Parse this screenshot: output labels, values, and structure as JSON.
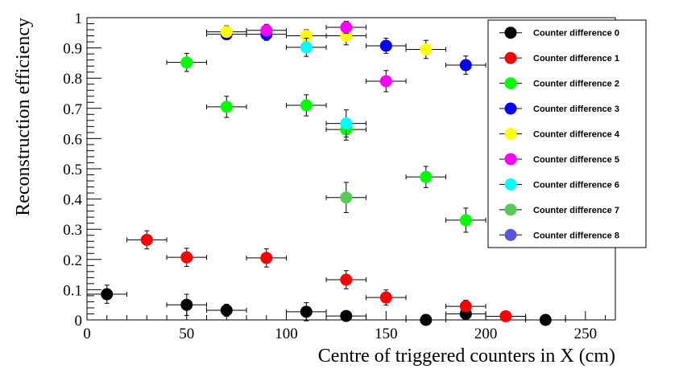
{
  "chart_data": {
    "type": "scatter",
    "title": "",
    "xlabel": "Centre of triggered counters in X (cm)",
    "ylabel": "Reconstruction efficiency",
    "xlim": [
      0,
      265
    ],
    "ylim": [
      0,
      1
    ],
    "x_ticks": [
      0,
      50,
      100,
      150,
      200,
      250
    ],
    "y_ticks": [
      0,
      0.1,
      0.2,
      0.3,
      0.4,
      0.5,
      0.6,
      0.7,
      0.8,
      0.9,
      1
    ],
    "x_tick_labels": [
      "0",
      "50",
      "100",
      "150",
      "200",
      "250"
    ],
    "y_tick_labels": [
      "0",
      "0.1",
      "0.2",
      "0.3",
      "0.4",
      "0.5",
      "0.6",
      "0.7",
      "0.8",
      "0.9",
      "1"
    ],
    "grid": false,
    "legend_position": "top-right",
    "series": [
      {
        "name": "Counter difference 0",
        "color": "#000000",
        "points": [
          {
            "x": 10,
            "xerr": 10,
            "y": 0.085,
            "yerr": 0.03
          },
          {
            "x": 50,
            "xerr": 10,
            "y": 0.05,
            "yerr": 0.035
          },
          {
            "x": 70,
            "xerr": 10,
            "y": 0.032,
            "yerr": 0.02
          },
          {
            "x": 110,
            "xerr": 10,
            "y": 0.027,
            "yerr": 0.03
          },
          {
            "x": 130,
            "xerr": 10,
            "y": 0.013,
            "yerr": 0.015
          },
          {
            "x": 170,
            "xerr": 10,
            "y": 0.0,
            "yerr": 0.005
          },
          {
            "x": 190,
            "xerr": 10,
            "y": 0.02,
            "yerr": 0.02
          },
          {
            "x": 230,
            "xerr": 10,
            "y": 0.0,
            "yerr": 0.005
          }
        ]
      },
      {
        "name": "Counter difference 1",
        "color": "#ff0000",
        "points": [
          {
            "x": 30,
            "xerr": 10,
            "y": 0.265,
            "yerr": 0.03
          },
          {
            "x": 50,
            "xerr": 10,
            "y": 0.207,
            "yerr": 0.03
          },
          {
            "x": 90,
            "xerr": 10,
            "y": 0.205,
            "yerr": 0.03
          },
          {
            "x": 130,
            "xerr": 10,
            "y": 0.133,
            "yerr": 0.03
          },
          {
            "x": 150,
            "xerr": 10,
            "y": 0.074,
            "yerr": 0.025
          },
          {
            "x": 190,
            "xerr": 10,
            "y": 0.045,
            "yerr": 0.02
          },
          {
            "x": 210,
            "xerr": 10,
            "y": 0.012,
            "yerr": 0.01
          }
        ]
      },
      {
        "name": "Counter difference 2",
        "color": "#00ff00",
        "points": [
          {
            "x": 50,
            "xerr": 10,
            "y": 0.852,
            "yerr": 0.03
          },
          {
            "x": 70,
            "xerr": 10,
            "y": 0.705,
            "yerr": 0.035
          },
          {
            "x": 110,
            "xerr": 10,
            "y": 0.71,
            "yerr": 0.035
          },
          {
            "x": 130,
            "xerr": 10,
            "y": 0.63,
            "yerr": 0.035
          },
          {
            "x": 170,
            "xerr": 10,
            "y": 0.473,
            "yerr": 0.035
          },
          {
            "x": 190,
            "xerr": 10,
            "y": 0.33,
            "yerr": 0.04
          }
        ]
      },
      {
        "name": "Counter difference 3",
        "color": "#0000ff",
        "points": [
          {
            "x": 70,
            "xerr": 10,
            "y": 0.945,
            "yerr": 0.015
          },
          {
            "x": 90,
            "xerr": 10,
            "y": 0.945,
            "yerr": 0.02
          },
          {
            "x": 150,
            "xerr": 10,
            "y": 0.907,
            "yerr": 0.025
          },
          {
            "x": 190,
            "xerr": 10,
            "y": 0.843,
            "yerr": 0.03
          }
        ]
      },
      {
        "name": "Counter difference 4",
        "color": "#ffff00",
        "points": [
          {
            "x": 70,
            "xerr": 10,
            "y": 0.953,
            "yerr": 0.02
          },
          {
            "x": 110,
            "xerr": 10,
            "y": 0.94,
            "yerr": 0.02
          },
          {
            "x": 130,
            "xerr": 10,
            "y": 0.94,
            "yerr": 0.03
          },
          {
            "x": 170,
            "xerr": 10,
            "y": 0.895,
            "yerr": 0.03
          }
        ]
      },
      {
        "name": "Counter difference 5",
        "color": "#ff00ff",
        "points": [
          {
            "x": 90,
            "xerr": 10,
            "y": 0.958,
            "yerr": 0.02
          },
          {
            "x": 130,
            "xerr": 10,
            "y": 0.968,
            "yerr": 0.02
          },
          {
            "x": 150,
            "xerr": 10,
            "y": 0.79,
            "yerr": 0.035
          }
        ]
      },
      {
        "name": "Counter difference 6",
        "color": "#00ffff",
        "points": [
          {
            "x": 110,
            "xerr": 10,
            "y": 0.902,
            "yerr": 0.03
          },
          {
            "x": 130,
            "xerr": 10,
            "y": 0.65,
            "yerr": 0.045
          }
        ]
      },
      {
        "name": "Counter difference 7",
        "color": "#55cc55",
        "points": [
          {
            "x": 130,
            "xerr": 10,
            "y": 0.405,
            "yerr": 0.05
          }
        ]
      },
      {
        "name": "Counter difference 8",
        "color": "#5555dd",
        "points": []
      }
    ]
  }
}
